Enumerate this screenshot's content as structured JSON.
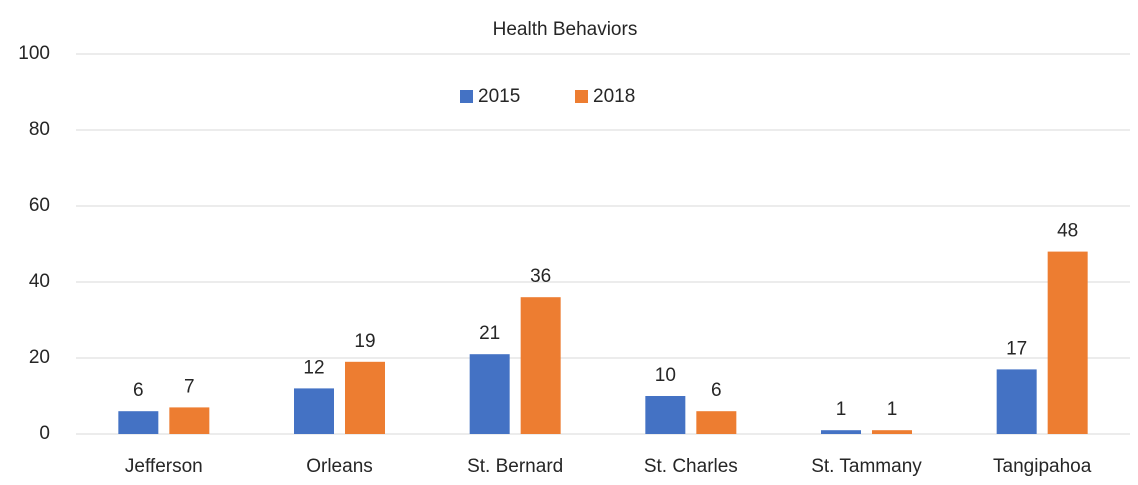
{
  "chart_data": {
    "type": "bar",
    "title": "Health Behaviors",
    "categories": [
      "Jefferson",
      "Orleans",
      "St. Bernard",
      "St. Charles",
      "St. Tammany",
      "Tangipahoa"
    ],
    "series": [
      {
        "name": "2015",
        "color": "#4472c4",
        "values": [
          6,
          12,
          21,
          10,
          1,
          17
        ]
      },
      {
        "name": "2018",
        "color": "#ed7d31",
        "values": [
          7,
          19,
          36,
          6,
          1,
          48
        ]
      }
    ],
    "ylim": [
      0,
      100
    ],
    "yticks": [
      0,
      20,
      40,
      60,
      80,
      100
    ],
    "grid": true,
    "legend": "top"
  }
}
